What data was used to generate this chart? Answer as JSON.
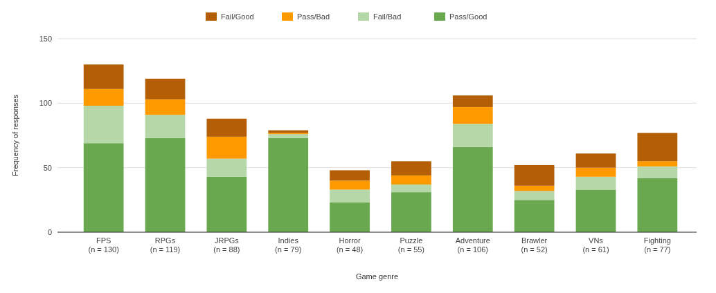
{
  "chart_data": {
    "type": "bar",
    "stacked": true,
    "xlabel": "Game genre",
    "ylabel": "Frequency of responses",
    "categories": [
      "FPS\n(n = 130)",
      "RPGs\n(n = 119)",
      "JRPGs\n(n = 88)",
      "Indies\n(n = 79)",
      "Horror\n(n = 48)",
      "Puzzle\n(n = 55)",
      "Adventure\n(n = 106)",
      "Brawler\n(n = 52)",
      "VNs\n(n = 61)",
      "Fighting\n(n = 77)"
    ],
    "series": [
      {
        "name": "Pass/Good",
        "color": "#6aa84f",
        "values": [
          69,
          73,
          43,
          73,
          23,
          31,
          66,
          25,
          33,
          42
        ]
      },
      {
        "name": "Fail/Bad",
        "color": "#b6d7a8",
        "values": [
          29,
          18,
          14,
          3,
          10,
          6,
          18,
          7,
          10,
          9
        ]
      },
      {
        "name": "Pass/Bad",
        "color": "#ff9900",
        "values": [
          13,
          12,
          17,
          1,
          7,
          7,
          13,
          4,
          7,
          4
        ]
      },
      {
        "name": "Fail/Good",
        "color": "#b45f06",
        "values": [
          19,
          16,
          14,
          2,
          8,
          11,
          9,
          16,
          11,
          22
        ]
      }
    ],
    "ylim": [
      0,
      150
    ],
    "yticks": [
      0,
      50,
      100,
      150
    ],
    "grid": "y",
    "legend": "top"
  }
}
